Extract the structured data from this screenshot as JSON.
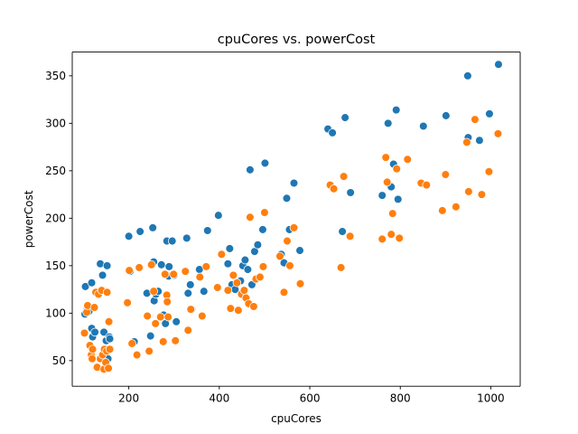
{
  "chart_data": {
    "type": "scatter",
    "title": "cpuCores vs. powerCost",
    "xlabel": "cpuCores",
    "ylabel": "powerCost",
    "xlim": [
      75,
      1065
    ],
    "ylim": [
      23,
      375
    ],
    "x_ticks": [
      200,
      400,
      600,
      800,
      1000
    ],
    "y_ticks": [
      50,
      100,
      150,
      200,
      250,
      300,
      350
    ],
    "grid": false,
    "legend": "none",
    "series": [
      {
        "color": "#1f77b4",
        "points": [
          [
            103,
            99
          ],
          [
            104,
            128
          ],
          [
            108,
            104
          ],
          [
            112,
            102
          ],
          [
            118,
            132
          ],
          [
            120,
            75
          ],
          [
            118,
            84
          ],
          [
            125,
            80
          ],
          [
            135,
            121
          ],
          [
            137,
            152
          ],
          [
            142,
            140
          ],
          [
            145,
            80
          ],
          [
            147,
            53
          ],
          [
            150,
            71
          ],
          [
            152,
            150
          ],
          [
            154,
            52
          ],
          [
            157,
            75
          ],
          [
            158,
            73
          ],
          [
            200,
            181
          ],
          [
            203,
            144
          ],
          [
            212,
            70
          ],
          [
            225,
            186
          ],
          [
            240,
            121
          ],
          [
            248,
            76
          ],
          [
            253,
            190
          ],
          [
            255,
            154
          ],
          [
            256,
            113
          ],
          [
            260,
            120
          ],
          [
            265,
            123
          ],
          [
            272,
            151
          ],
          [
            277,
            98
          ],
          [
            281,
            89
          ],
          [
            284,
            176
          ],
          [
            288,
            139
          ],
          [
            289,
            149
          ],
          [
            296,
            176
          ],
          [
            300,
            140
          ],
          [
            305,
            91
          ],
          [
            328,
            179
          ],
          [
            331,
            121
          ],
          [
            336,
            130
          ],
          [
            339,
            104
          ],
          [
            356,
            146
          ],
          [
            366,
            123
          ],
          [
            374,
            187
          ],
          [
            398,
            203
          ],
          [
            419,
            152
          ],
          [
            423,
            168
          ],
          [
            428,
            130
          ],
          [
            435,
            125
          ],
          [
            447,
            134
          ],
          [
            452,
            150
          ],
          [
            457,
            156
          ],
          [
            463,
            146
          ],
          [
            468,
            251
          ],
          [
            472,
            130
          ],
          [
            478,
            165
          ],
          [
            485,
            172
          ],
          [
            496,
            188
          ],
          [
            501,
            258
          ],
          [
            537,
            162
          ],
          [
            543,
            153
          ],
          [
            549,
            221
          ],
          [
            555,
            188
          ],
          [
            565,
            237
          ],
          [
            578,
            166
          ],
          [
            640,
            294
          ],
          [
            650,
            290
          ],
          [
            672,
            186
          ],
          [
            678,
            306
          ],
          [
            690,
            227
          ],
          [
            760,
            224
          ],
          [
            773,
            300
          ],
          [
            780,
            233
          ],
          [
            785,
            257
          ],
          [
            791,
            314
          ],
          [
            795,
            220
          ],
          [
            851,
            297
          ],
          [
            901,
            308
          ],
          [
            949,
            350
          ],
          [
            950,
            285
          ],
          [
            975,
            282
          ],
          [
            997,
            310
          ],
          [
            1017,
            362
          ]
        ]
      },
      {
        "color": "#ff7f0e",
        "points": [
          [
            102,
            79
          ],
          [
            107,
            101
          ],
          [
            109,
            108
          ],
          [
            114,
            66
          ],
          [
            117,
            56
          ],
          [
            119,
            52
          ],
          [
            120,
            62
          ],
          [
            124,
            106
          ],
          [
            127,
            122
          ],
          [
            130,
            43
          ],
          [
            133,
            120
          ],
          [
            137,
            52
          ],
          [
            140,
            124
          ],
          [
            142,
            56
          ],
          [
            145,
            41
          ],
          [
            146,
            62
          ],
          [
            149,
            48
          ],
          [
            151,
            60
          ],
          [
            152,
            122
          ],
          [
            155,
            42
          ],
          [
            156,
            91
          ],
          [
            158,
            62
          ],
          [
            197,
            111
          ],
          [
            201,
            145
          ],
          [
            207,
            68
          ],
          [
            218,
            56
          ],
          [
            223,
            148
          ],
          [
            241,
            97
          ],
          [
            245,
            60
          ],
          [
            250,
            151
          ],
          [
            255,
            123
          ],
          [
            259,
            89
          ],
          [
            270,
            96
          ],
          [
            276,
            70
          ],
          [
            280,
            141
          ],
          [
            284,
            119
          ],
          [
            285,
            112
          ],
          [
            287,
            96
          ],
          [
            299,
            141
          ],
          [
            303,
            71
          ],
          [
            325,
            144
          ],
          [
            331,
            82
          ],
          [
            337,
            104
          ],
          [
            357,
            138
          ],
          [
            362,
            97
          ],
          [
            371,
            149
          ],
          [
            396,
            127
          ],
          [
            405,
            162
          ],
          [
            419,
            124
          ],
          [
            425,
            105
          ],
          [
            431,
            140
          ],
          [
            439,
            132
          ],
          [
            442,
            103
          ],
          [
            449,
            120
          ],
          [
            455,
            124
          ],
          [
            459,
            116
          ],
          [
            465,
            110
          ],
          [
            468,
            201
          ],
          [
            476,
            107
          ],
          [
            481,
            136
          ],
          [
            490,
            138
          ],
          [
            497,
            149
          ],
          [
            500,
            206
          ],
          [
            534,
            160
          ],
          [
            543,
            122
          ],
          [
            550,
            176
          ],
          [
            556,
            150
          ],
          [
            565,
            190
          ],
          [
            579,
            131
          ],
          [
            645,
            235
          ],
          [
            653,
            231
          ],
          [
            669,
            148
          ],
          [
            675,
            244
          ],
          [
            689,
            181
          ],
          [
            760,
            178
          ],
          [
            768,
            264
          ],
          [
            771,
            238
          ],
          [
            780,
            183
          ],
          [
            783,
            205
          ],
          [
            792,
            252
          ],
          [
            798,
            179
          ],
          [
            816,
            262
          ],
          [
            846,
            237
          ],
          [
            858,
            235
          ],
          [
            893,
            208
          ],
          [
            900,
            246
          ],
          [
            923,
            212
          ],
          [
            947,
            280
          ],
          [
            951,
            228
          ],
          [
            965,
            304
          ],
          [
            980,
            225
          ],
          [
            996,
            249
          ],
          [
            1016,
            289
          ]
        ]
      }
    ]
  }
}
